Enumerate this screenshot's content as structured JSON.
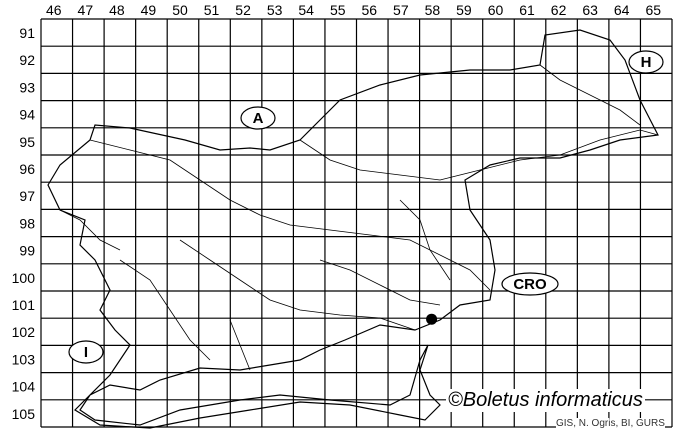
{
  "map": {
    "columns": [
      "46",
      "47",
      "48",
      "49",
      "50",
      "51",
      "52",
      "53",
      "54",
      "55",
      "56",
      "57",
      "58",
      "59",
      "60",
      "61",
      "62",
      "63",
      "64",
      "65"
    ],
    "rows": [
      "91",
      "92",
      "93",
      "94",
      "95",
      "96",
      "97",
      "98",
      "99",
      "100",
      "101",
      "102",
      "103",
      "104",
      "105"
    ],
    "countries": [
      {
        "label": "A"
      },
      {
        "label": "H"
      },
      {
        "label": "CRO"
      },
      {
        "label": "I"
      }
    ],
    "records": [
      {
        "column": "58",
        "row": "102"
      }
    ],
    "copyright": "©Boletus informaticus",
    "credit": "GIS, N. Ogris, BI, GURS",
    "colors": {
      "lines": "#000000",
      "background": "#ffffff",
      "credit_text": "#333333"
    }
  }
}
